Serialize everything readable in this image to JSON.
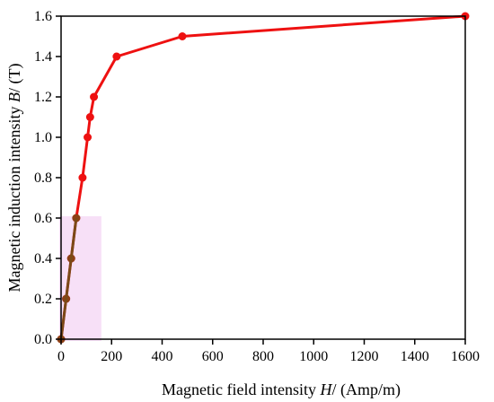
{
  "chart_data": {
    "type": "line",
    "xlabel_parts": [
      "Magnetic field intensity ",
      "H",
      "/ (Amp/m)"
    ],
    "ylabel_parts": [
      "Magnetic induction intensity ",
      "B",
      "/ (T)"
    ],
    "xlim": [
      0,
      1600
    ],
    "ylim": [
      0,
      1.6
    ],
    "x_ticks": [
      0,
      200,
      400,
      600,
      800,
      1000,
      1200,
      1400,
      1600
    ],
    "y_ticks": [
      0.0,
      0.2,
      0.4,
      0.6,
      0.8,
      1.0,
      1.2,
      1.4,
      1.6
    ],
    "x_tick_labels": [
      "0",
      "200",
      "400",
      "600",
      "800",
      "1000",
      "1200",
      "1400",
      "1600"
    ],
    "y_tick_labels": [
      "0.0",
      "0.2",
      "0.4",
      "0.6",
      "0.8",
      "1.0",
      "1.2",
      "1.4",
      "1.6"
    ],
    "grid": false,
    "series": [
      {
        "color": "#ee1111",
        "marker_color": "#ee1111",
        "x": [
          0,
          20,
          40,
          60,
          85,
          105,
          115,
          130,
          220,
          480,
          1600
        ],
        "y": [
          0.0,
          0.2,
          0.4,
          0.6,
          0.8,
          1.0,
          1.1,
          1.2,
          1.4,
          1.5,
          1.6
        ]
      }
    ],
    "linear_overlay": {
      "color": "#7a4a18",
      "highlight_color": "#e9a6e9",
      "x": [
        0,
        60
      ],
      "y": [
        0.0,
        0.6
      ]
    }
  }
}
